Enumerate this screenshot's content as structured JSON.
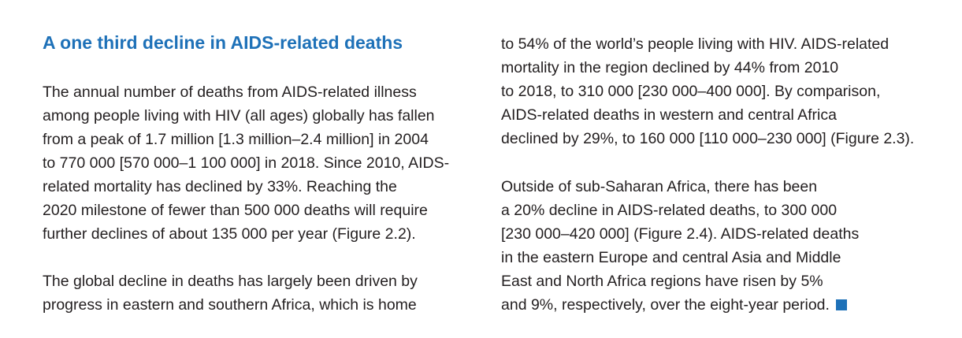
{
  "heading": "A one third decline in AIDS-related deaths",
  "left_column": {
    "paragraph1": [
      "The annual number of deaths from AIDS-related illness",
      "among people living with HIV (all ages) globally has fallen",
      "from a peak of 1.7 million [1.3 million–2.4 million] in 2004",
      "to 770 000 [570 000–1 100 000] in 2018. Since 2010, AIDS-",
      "related mortality has declined by 33%. Reaching the",
      "2020 milestone of fewer than 500 000 deaths will require",
      "further declines of about 135 000 per year (Figure 2.2)."
    ],
    "paragraph2": [
      "The global decline in deaths has largely been driven by",
      "progress in eastern and southern Africa, which is home"
    ]
  },
  "right_column": {
    "paragraph1": [
      "to 54% of the world’s people living with HIV. AIDS-related",
      "mortality in the region declined by 44% from 2010",
      "to 2018, to 310 000 [230 000–400 000]. By comparison,",
      "AIDS-related deaths in western and central Africa",
      "declined by 29%, to 160 000 [110 000–230 000] (Figure 2.3)."
    ],
    "paragraph2": [
      "Outside of sub-Saharan Africa, there has been",
      "a 20% decline in AIDS-related deaths, to 300 000",
      "[230 000–420 000] (Figure 2.4). AIDS-related deaths",
      "in the eastern Europe and central Asia and Middle",
      "East and North Africa regions have risen by 5%",
      "and 9%, respectively, over the eight-year period."
    ]
  },
  "colors": {
    "heading": "#1e71b8",
    "end_marker": "#1e71b8",
    "body_text": "#231f20"
  }
}
